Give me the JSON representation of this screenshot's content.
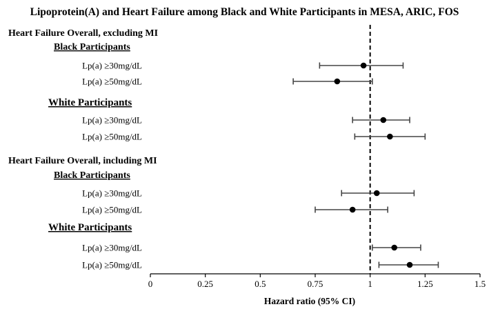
{
  "chart_data": {
    "type": "forest",
    "title": "Lipoprotein(A) and Heart Failure among Black and White Participants in MESA, ARIC, FOS",
    "xlabel": "Hazard ratio (95% CI)",
    "xlim": [
      0,
      1.5
    ],
    "xticks": [
      "0",
      "0.25",
      "0.5",
      "0.75",
      "1",
      "1.25",
      "1.5"
    ],
    "reference_line": 1,
    "groups": [
      {
        "name": "Heart Failure Overall, excluding MI",
        "subgroups": [
          {
            "name": "Black Participants",
            "rows": [
              {
                "label": "Lp(a) ≥30mg/dL",
                "hr": 0.97,
                "lo": 0.77,
                "hi": 1.15
              },
              {
                "label": "Lp(a) ≥50mg/dL",
                "hr": 0.85,
                "lo": 0.65,
                "hi": 1.01
              }
            ]
          },
          {
            "name": "White Participants",
            "rows": [
              {
                "label": "Lp(a) ≥30mg/dL",
                "hr": 1.06,
                "lo": 0.92,
                "hi": 1.18
              },
              {
                "label": "Lp(a) ≥50mg/dL",
                "hr": 1.09,
                "lo": 0.93,
                "hi": 1.25
              }
            ]
          }
        ]
      },
      {
        "name": "Heart Failure Overall, including MI",
        "subgroups": [
          {
            "name": "Black Participants",
            "rows": [
              {
                "label": "Lp(a) ≥30mg/dL",
                "hr": 1.03,
                "lo": 0.87,
                "hi": 1.2
              },
              {
                "label": "Lp(a) ≥50mg/dL",
                "hr": 0.92,
                "lo": 0.75,
                "hi": 1.08
              }
            ]
          },
          {
            "name": "White Participants",
            "rows": [
              {
                "label": "Lp(a) ≥30mg/dL",
                "hr": 1.11,
                "lo": 1.01,
                "hi": 1.23
              },
              {
                "label": "Lp(a) ≥50mg/dL",
                "hr": 1.18,
                "lo": 1.04,
                "hi": 1.31
              }
            ]
          }
        ]
      }
    ]
  }
}
